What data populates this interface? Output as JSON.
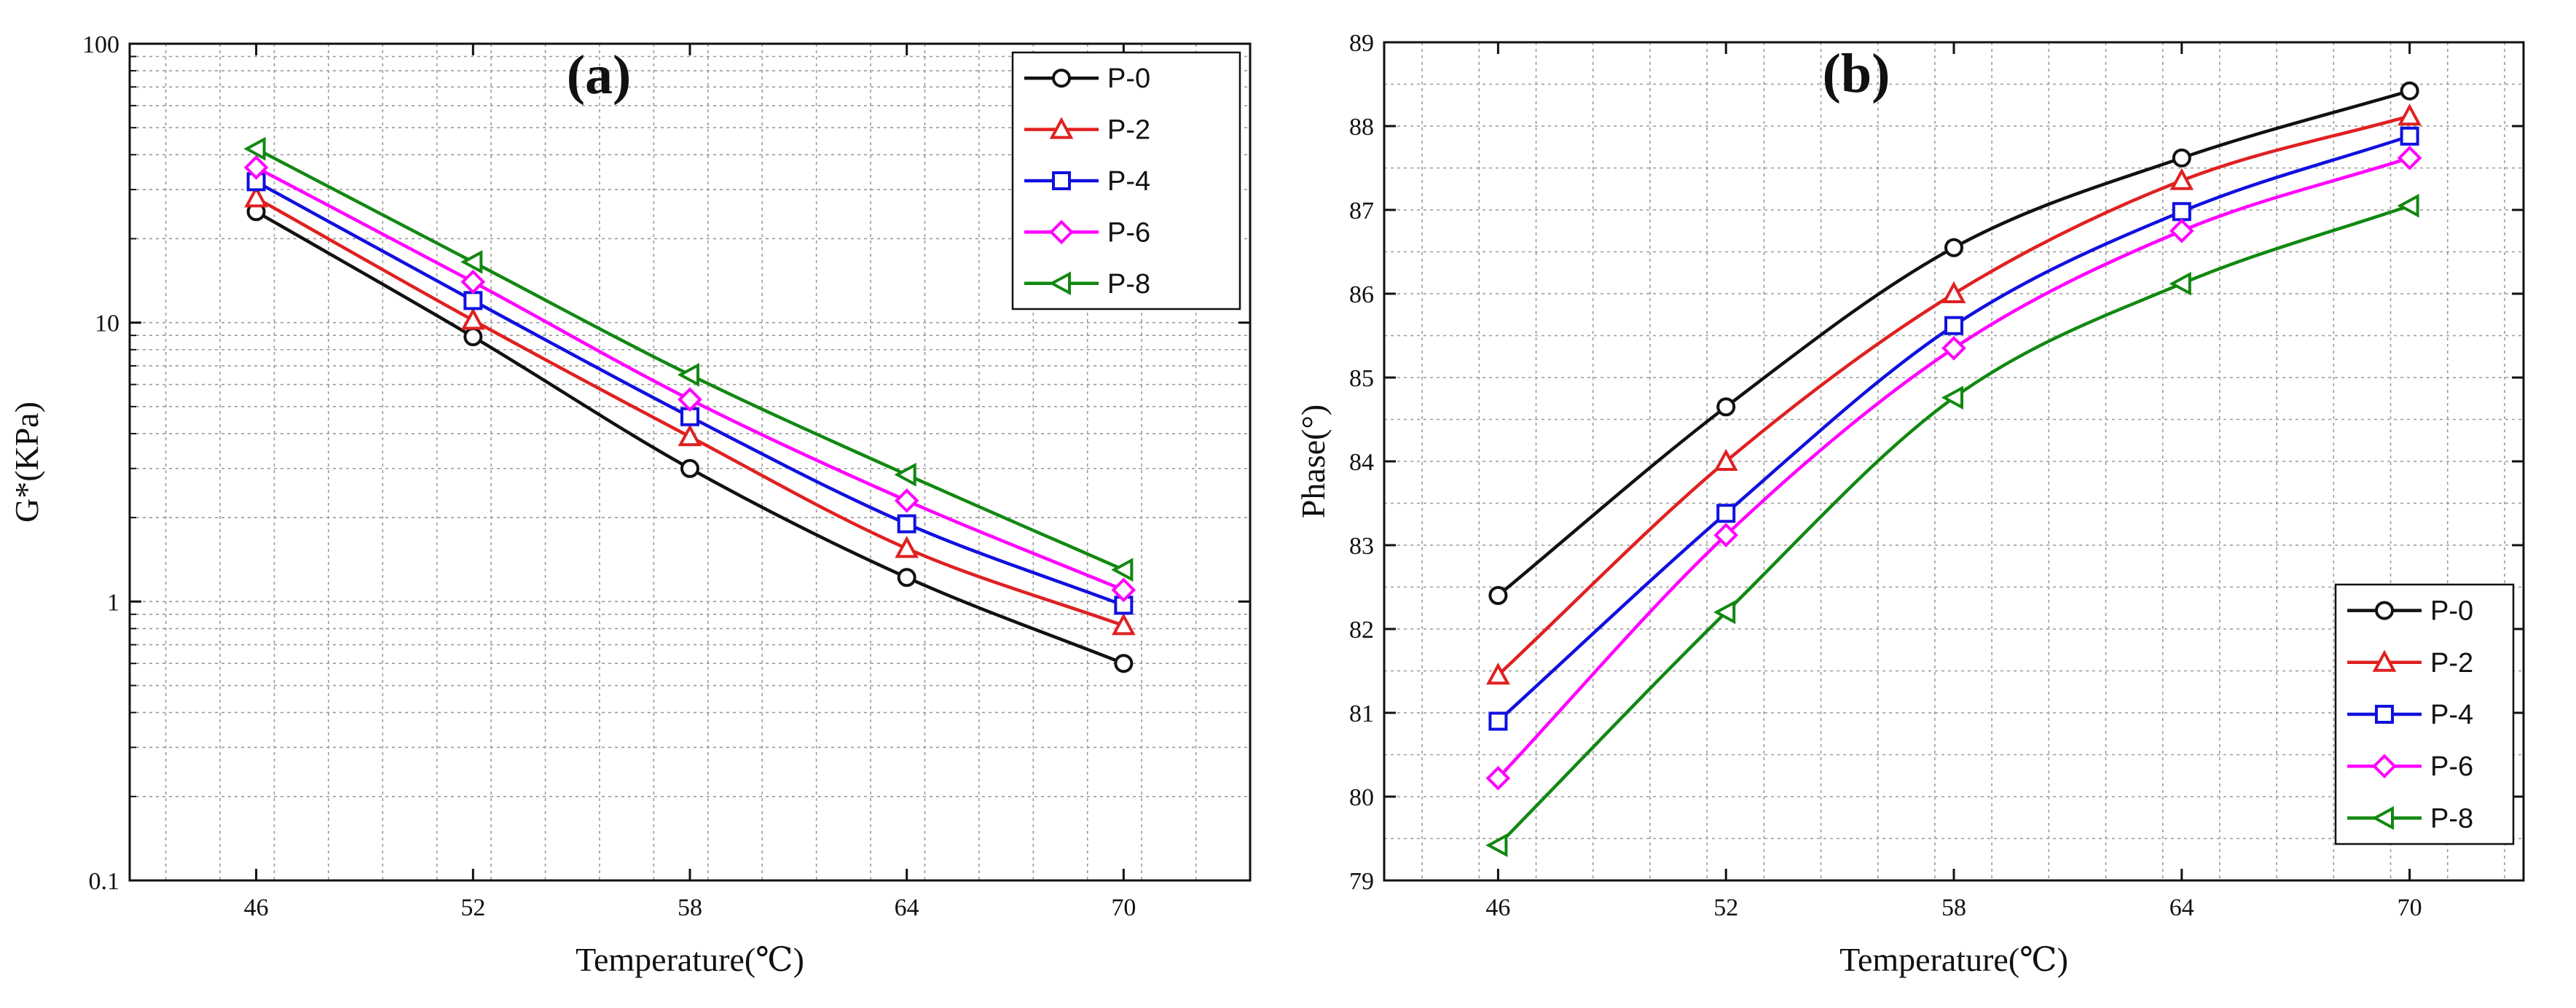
{
  "chart_data": [
    {
      "panel": "(a)",
      "type": "line",
      "y_scale": "log",
      "xlabel": "Temperature(℃)",
      "ylabel": "G*(KPa)",
      "x": [
        46,
        52,
        58,
        64,
        70
      ],
      "x_ticks": [
        "46",
        "52",
        "58",
        "64",
        "70"
      ],
      "xlim": [
        42.5,
        73.5
      ],
      "ylim": [
        0.1,
        100
      ],
      "y_ticks": [
        {
          "value": 0.1,
          "label": "0.1"
        },
        {
          "value": 1,
          "label": "1"
        },
        {
          "value": 10,
          "label": "10"
        },
        {
          "value": 100,
          "label": "100"
        }
      ],
      "grid": true,
      "legend_position": "top-right",
      "series": [
        {
          "name": "P-0",
          "color": "#111111",
          "marker": "circle",
          "values": [
            25,
            8.9,
            3.0,
            1.22,
            0.6
          ]
        },
        {
          "name": "P-2",
          "color": "#e02020",
          "marker": "triangle-up",
          "values": [
            28,
            10.2,
            3.9,
            1.55,
            0.82
          ]
        },
        {
          "name": "P-4",
          "color": "#1010e0",
          "marker": "square",
          "values": [
            32,
            12,
            4.6,
            1.9,
            0.97
          ]
        },
        {
          "name": "P-6",
          "color": "#ff00ff",
          "marker": "diamond",
          "values": [
            36,
            14,
            5.3,
            2.3,
            1.1
          ]
        },
        {
          "name": "P-8",
          "color": "#118811",
          "marker": "triangle-left",
          "values": [
            42,
            16.5,
            6.5,
            2.85,
            1.3
          ]
        }
      ]
    },
    {
      "panel": "(b)",
      "type": "line",
      "y_scale": "linear",
      "xlabel": "Temperature(℃)",
      "ylabel": "Phase(°)",
      "x": [
        46,
        52,
        58,
        64,
        70
      ],
      "x_ticks": [
        "46",
        "52",
        "58",
        "64",
        "70"
      ],
      "xlim": [
        43,
        73
      ],
      "ylim": [
        79,
        89
      ],
      "y_ticks": [
        {
          "value": 79,
          "label": "79"
        },
        {
          "value": 80,
          "label": "80"
        },
        {
          "value": 81,
          "label": "81"
        },
        {
          "value": 82,
          "label": "82"
        },
        {
          "value": 83,
          "label": "83"
        },
        {
          "value": 84,
          "label": "84"
        },
        {
          "value": 85,
          "label": "85"
        },
        {
          "value": 86,
          "label": "86"
        },
        {
          "value": 87,
          "label": "87"
        },
        {
          "value": 88,
          "label": "88"
        },
        {
          "value": 89,
          "label": "89"
        }
      ],
      "grid": true,
      "legend_position": "bottom-right",
      "series": [
        {
          "name": "P-0",
          "color": "#111111",
          "marker": "circle",
          "values": [
            82.4,
            84.65,
            86.55,
            87.62,
            88.42
          ]
        },
        {
          "name": "P-2",
          "color": "#e02020",
          "marker": "triangle-up",
          "values": [
            81.45,
            84.0,
            86.0,
            87.35,
            88.12
          ]
        },
        {
          "name": "P-4",
          "color": "#1010e0",
          "marker": "square",
          "values": [
            80.9,
            83.38,
            85.62,
            86.98,
            87.88
          ]
        },
        {
          "name": "P-6",
          "color": "#ff00ff",
          "marker": "diamond",
          "values": [
            80.22,
            83.12,
            85.35,
            86.75,
            87.62
          ]
        },
        {
          "name": "P-8",
          "color": "#118811",
          "marker": "triangle-left",
          "values": [
            79.42,
            82.2,
            84.76,
            86.12,
            87.05
          ]
        }
      ]
    }
  ]
}
